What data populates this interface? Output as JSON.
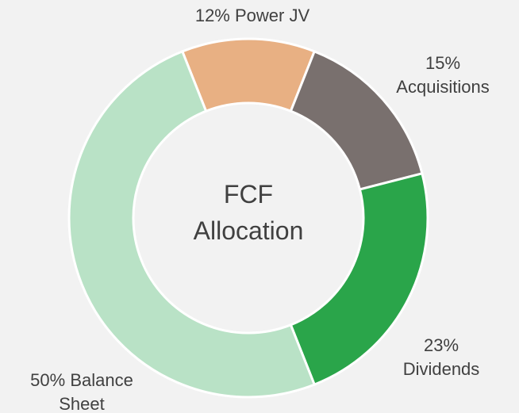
{
  "chart_data": {
    "type": "donut",
    "title": "FCF Allocation",
    "categories": [
      "Power JV",
      "Acquisitions",
      "Dividends",
      "Balance Sheet"
    ],
    "values": [
      12,
      15,
      23,
      50
    ],
    "value_labels": [
      "12%",
      "15%",
      "23%",
      "50%"
    ],
    "colors": [
      "#e8b083",
      "#79706e",
      "#2aa54a",
      "#b9e2c6"
    ]
  }
}
